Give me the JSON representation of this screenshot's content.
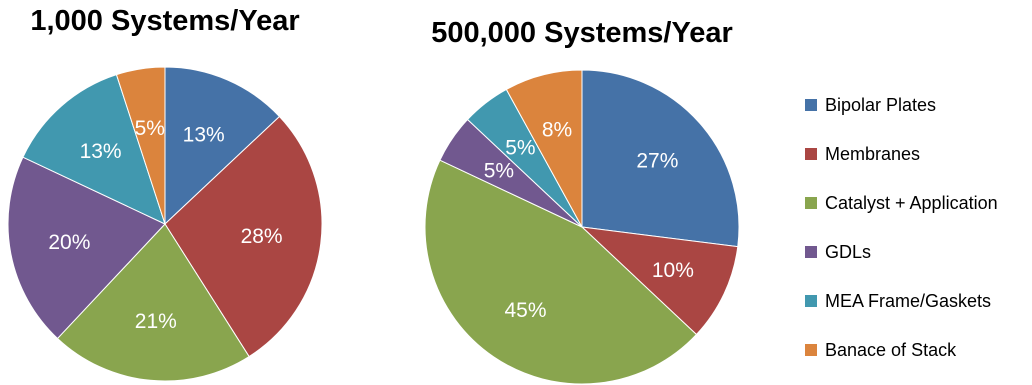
{
  "chart_data": [
    {
      "type": "pie",
      "title": "1,000 Systems/Year",
      "start": "12 o'clock",
      "direction": "clockwise",
      "slices": [
        {
          "name": "Bipolar Plates",
          "value": 13,
          "label": "13%",
          "color": "#4572A7"
        },
        {
          "name": "Membranes",
          "value": 28,
          "label": "28%",
          "color": "#AA4643"
        },
        {
          "name": "Catalyst + Application",
          "value": 21,
          "label": "21%",
          "color": "#89A54E"
        },
        {
          "name": "GDLs",
          "value": 20,
          "label": "20%",
          "color": "#71588F"
        },
        {
          "name": "MEA Frame/Gaskets",
          "value": 13,
          "label": "13%",
          "color": "#4198AF"
        },
        {
          "name": "Banace of Stack",
          "value": 5,
          "label": "5%",
          "color": "#DB843D"
        }
      ]
    },
    {
      "type": "pie",
      "title": "500,000 Systems/Year",
      "start": "12 o'clock",
      "direction": "clockwise",
      "slices": [
        {
          "name": "Bipolar Plates",
          "value": 27,
          "label": "27%",
          "color": "#4572A7"
        },
        {
          "name": "Membranes",
          "value": 10,
          "label": "10%",
          "color": "#AA4643"
        },
        {
          "name": "Catalyst + Application",
          "value": 45,
          "label": "45%",
          "color": "#89A54E"
        },
        {
          "name": "GDLs",
          "value": 5,
          "label": "5%",
          "color": "#71588F"
        },
        {
          "name": "MEA Frame/Gaskets",
          "value": 5,
          "label": "5%",
          "color": "#4198AF"
        },
        {
          "name": "Banace of Stack",
          "value": 8,
          "label": "8%",
          "color": "#DB843D"
        }
      ]
    }
  ],
  "legend": {
    "placement": "right",
    "items": [
      {
        "label": "Bipolar Plates",
        "color": "#4572A7"
      },
      {
        "label": "Membranes",
        "color": "#AA4643"
      },
      {
        "label": "Catalyst + Application",
        "color": "#89A54E"
      },
      {
        "label": "GDLs",
        "color": "#71588F"
      },
      {
        "label": "MEA Frame/Gaskets",
        "color": "#4198AF"
      },
      {
        "label": "Banace of Stack",
        "color": "#DB843D"
      }
    ]
  }
}
